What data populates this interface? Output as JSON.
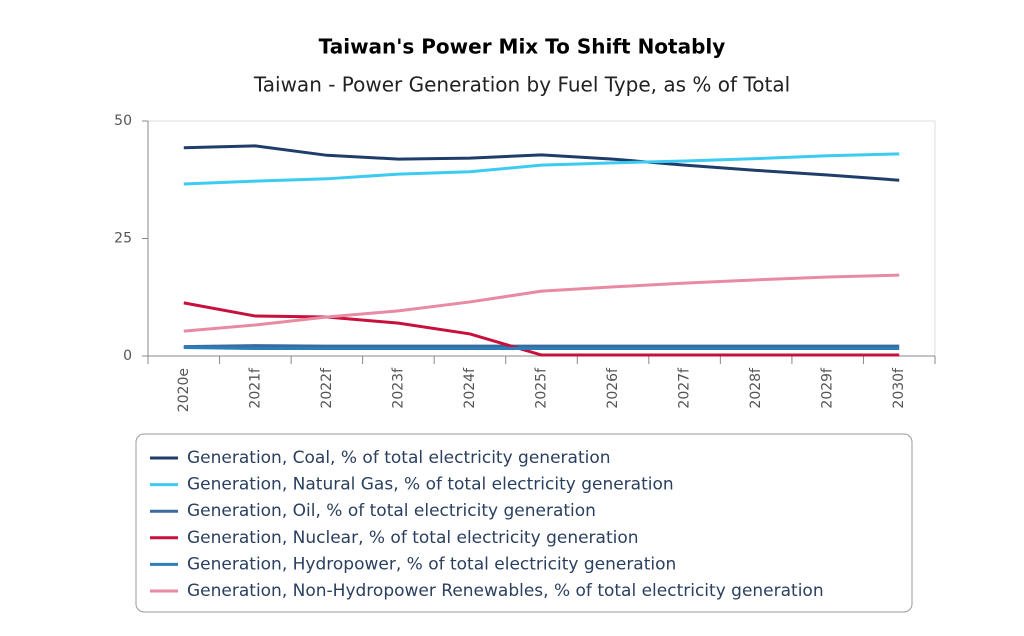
{
  "chart_data": {
    "type": "line",
    "title": "Taiwan's Power Mix To Shift Notably",
    "subtitle": "Taiwan - Power Generation by Fuel Type, as % of Total",
    "categories": [
      "2020e",
      "2021f",
      "2022f",
      "2023f",
      "2024f",
      "2025f",
      "2026f",
      "2027f",
      "2028f",
      "2029f",
      "2030f"
    ],
    "series": [
      {
        "name": "Generation, Coal, % of total electricity generation",
        "color": "#1f3d6b",
        "values": [
          44.3,
          44.7,
          42.7,
          41.9,
          42.1,
          42.8,
          41.9,
          40.6,
          39.5,
          38.5,
          37.4
        ]
      },
      {
        "name": "Generation, Natural Gas, % of total electricity generation",
        "color": "#3ecbf2",
        "values": [
          36.6,
          37.2,
          37.7,
          38.7,
          39.2,
          40.6,
          41.1,
          41.5,
          42.0,
          42.6,
          43.0
        ]
      },
      {
        "name": "Generation, Oil, % of total electricity generation",
        "color": "#3b6a9e",
        "values": [
          2.0,
          2.2,
          2.1,
          2.1,
          2.1,
          2.1,
          2.1,
          2.1,
          2.1,
          2.1,
          2.1
        ]
      },
      {
        "name": "Generation, Nuclear, % of total electricity generation",
        "color": "#c8103d",
        "values": [
          11.3,
          8.5,
          8.3,
          7.0,
          4.7,
          0.2,
          0.2,
          0.2,
          0.2,
          0.2,
          0.2
        ]
      },
      {
        "name": "Generation, Hydropower, % of total electricity generation",
        "color": "#2a7fb8",
        "values": [
          1.8,
          1.6,
          1.6,
          1.6,
          1.6,
          1.6,
          1.6,
          1.6,
          1.6,
          1.6,
          1.6
        ]
      },
      {
        "name": "Generation, Non-Hydropower Renewables, % of total electricity generation",
        "color": "#e88aa3",
        "values": [
          5.3,
          6.6,
          8.3,
          9.6,
          11.5,
          13.8,
          14.7,
          15.5,
          16.2,
          16.8,
          17.2
        ]
      }
    ],
    "ylim": [
      0,
      50
    ],
    "yticks": [
      0,
      25,
      50
    ],
    "legend": "bottom"
  }
}
